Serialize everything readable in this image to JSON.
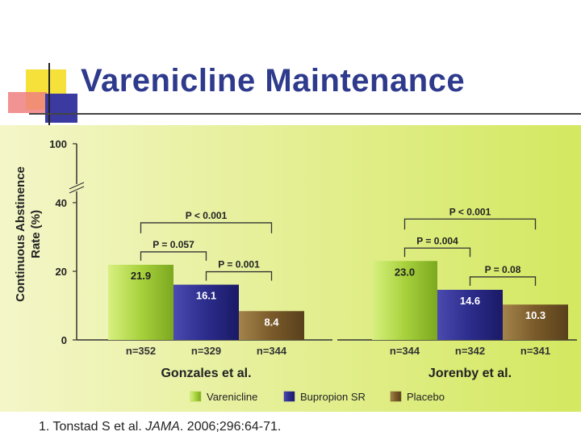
{
  "slide": {
    "title": "Varenicline Maintenance",
    "reference": {
      "prefix": "1. Tonstad S et al. ",
      "journal": "JAMA",
      "suffix": ". 2006;296:64-71."
    }
  },
  "colors": {
    "title": "#2e3a8c",
    "varenicline": "#a8d23c",
    "bupropion": "#2c2c8c",
    "placebo": "#7a5a2a",
    "background_left": "#f4f6c8",
    "background_right": "#d4e860"
  },
  "chart_data": {
    "type": "bar",
    "ylabel": "Continuous Abstinence Rate (%)",
    "yticks": [
      0,
      20,
      40,
      100
    ],
    "axis_break": true,
    "ylim": [
      0,
      100
    ],
    "legend_position": "bottom",
    "series": [
      {
        "name": "Varenicline"
      },
      {
        "name": "Bupropion SR"
      },
      {
        "name": "Placebo"
      }
    ],
    "groups": [
      {
        "name": "Gonzales et al.",
        "values": [
          21.9,
          16.1,
          8.4
        ],
        "labels": [
          "21.9",
          "16.1",
          "8.4"
        ],
        "n": [
          "n=352",
          "n=329",
          "n=344"
        ],
        "brackets": [
          {
            "label": "P < 0.001",
            "from": 0,
            "to": 2
          },
          {
            "label": "P = 0.057",
            "from": 0,
            "to": 1
          },
          {
            "label": "P = 0.001",
            "from": 1,
            "to": 2
          }
        ]
      },
      {
        "name": "Jorenby et al.",
        "values": [
          23.0,
          14.6,
          10.3
        ],
        "labels": [
          "23.0",
          "14.6",
          "10.3"
        ],
        "n": [
          "n=344",
          "n=342",
          "n=341"
        ],
        "brackets": [
          {
            "label": "P < 0.001",
            "from": 0,
            "to": 2
          },
          {
            "label": "P = 0.004",
            "from": 0,
            "to": 1
          },
          {
            "label": "P = 0.08",
            "from": 1,
            "to": 2
          }
        ]
      }
    ]
  }
}
